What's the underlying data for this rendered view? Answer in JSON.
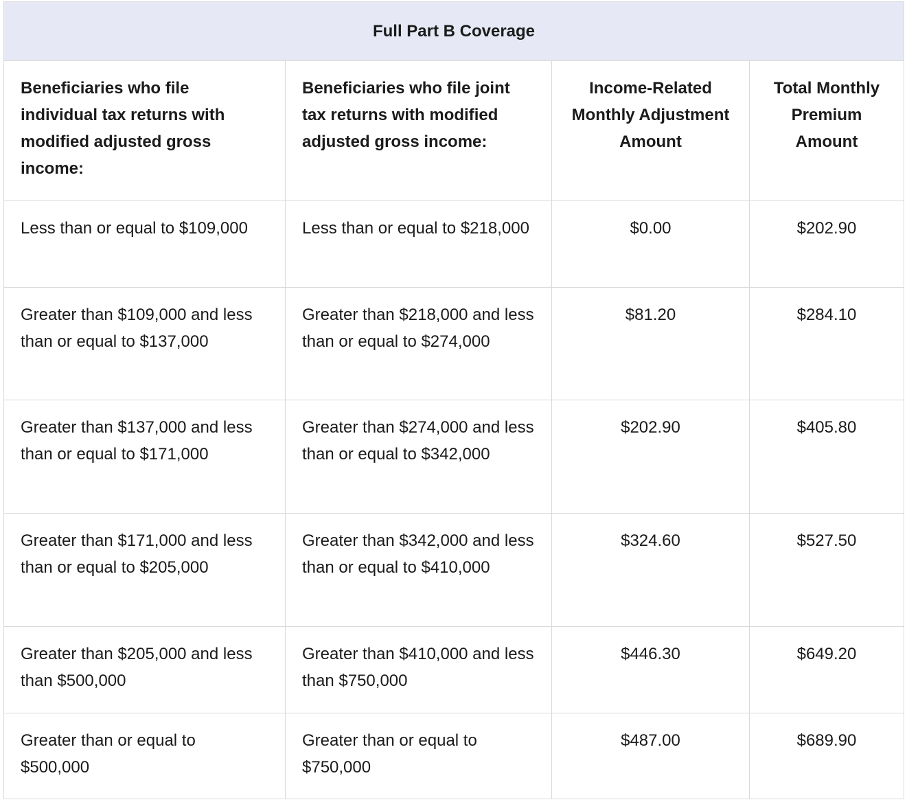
{
  "table": {
    "title": "Full Part B Coverage",
    "columns": [
      "Beneficiaries who file individual tax returns with modified adjusted gross income:",
      "Beneficiaries who file joint tax returns with modified adjusted gross income:",
      "Income-Related Monthly Adjustment Amount",
      "Total Monthly Premium Amount"
    ],
    "rows": [
      [
        "Less than or equal to $109,000",
        "Less than or equal to $218,000",
        "$0.00",
        "$202.90"
      ],
      [
        "Greater than $109,000 and less than or equal to $137,000",
        "Greater than $218,000 and less than or equal to $274,000",
        "$81.20",
        "$284.10"
      ],
      [
        "Greater than $137,000 and less than or equal to $171,000",
        "Greater than $274,000 and less than or equal to $342,000",
        "$202.90",
        "$405.80"
      ],
      [
        "Greater than $171,000 and less than or equal to $205,000",
        "Greater than $342,000 and less than or equal to $410,000",
        "$324.60",
        "$527.50"
      ],
      [
        "Greater than $205,000 and less than $500,000",
        "Greater than $410,000 and less than $750,000",
        "$446.30",
        "$649.20"
      ],
      [
        "Greater than or equal to $500,000",
        "Greater than or equal to $750,000",
        "$487.00",
        "$689.90"
      ]
    ]
  }
}
